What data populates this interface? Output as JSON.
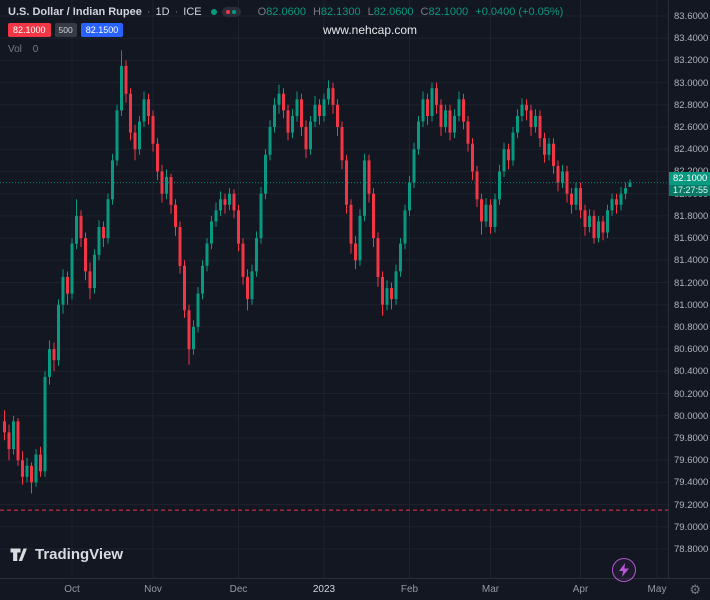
{
  "header": {
    "symbol_title": "U.S. Dollar / Indian Rupee",
    "sep": "·",
    "interval": "1D",
    "exchange": "ICE",
    "ohlc": {
      "o_label": "O",
      "o": "82.0600",
      "h_label": "H",
      "h": "82.1300",
      "l_label": "L",
      "l": "82.0600",
      "c_label": "C",
      "c": "82.1000",
      "change": "+0.0400 (+0.05%)"
    },
    "sell_price": "82.1000",
    "spread": "500",
    "buy_price": "82.1500",
    "vol_label": "Vol",
    "vol_value": "0"
  },
  "watermark": "www.nehcap.com",
  "footer": {
    "logo_text": "TradingView"
  },
  "icons": {
    "gear_glyph": "⚙"
  },
  "colors": {
    "bg": "#131722",
    "grid": "#1e222d",
    "up": "#089981",
    "down": "#f23645",
    "buy": "#2962ff",
    "sell": "#f23645",
    "text": "#d1d4dc",
    "text_dim": "#787b86",
    "axis_text": "#b2b5be",
    "boost": "#b357d2"
  },
  "price_axis": {
    "ticks": [
      "83.6000",
      "83.4000",
      "83.2000",
      "83.0000",
      "82.8000",
      "82.6000",
      "82.4000",
      "82.2000",
      "82.0000",
      "81.8000",
      "81.6000",
      "81.4000",
      "81.2000",
      "81.0000",
      "80.8000",
      "80.6000",
      "80.4000",
      "80.2000",
      "80.0000",
      "79.8000",
      "79.6000",
      "79.4000",
      "79.2000",
      "79.0000",
      "78.8000"
    ],
    "current_price": "82.1000",
    "countdown": "17:27:55"
  },
  "time_axis": {
    "labels": [
      {
        "label": "Oct",
        "index": 15
      },
      {
        "label": "Nov",
        "index": 33
      },
      {
        "label": "Dec",
        "index": 52
      },
      {
        "label": "2023",
        "index": 71,
        "emphasis": true
      },
      {
        "label": "Feb",
        "index": 90
      },
      {
        "label": "Mar",
        "index": 108
      },
      {
        "label": "Apr",
        "index": 128
      },
      {
        "label": "May",
        "index": 145
      }
    ]
  },
  "chart_data": {
    "type": "candlestick",
    "symbol": "U.S. Dollar / Indian Rupee",
    "interval": "1D",
    "exchange": "ICE",
    "y_min": 78.8,
    "y_max": 83.6,
    "tick_step": 0.2,
    "current_price": 82.1,
    "alert_line_price": 79.15,
    "candles": [
      [
        79.95,
        80.05,
        79.78,
        79.85
      ],
      [
        79.85,
        79.92,
        79.6,
        79.7
      ],
      [
        79.7,
        80.0,
        79.65,
        79.95
      ],
      [
        79.95,
        79.98,
        79.55,
        79.6
      ],
      [
        79.6,
        79.68,
        79.38,
        79.45
      ],
      [
        79.45,
        79.62,
        79.4,
        79.55
      ],
      [
        79.55,
        79.58,
        79.3,
        79.4
      ],
      [
        79.4,
        79.7,
        79.36,
        79.65
      ],
      [
        79.65,
        79.72,
        79.45,
        79.5
      ],
      [
        79.5,
        80.4,
        79.45,
        80.35
      ],
      [
        80.35,
        80.68,
        80.28,
        80.6
      ],
      [
        80.6,
        80.66,
        80.4,
        80.5
      ],
      [
        80.5,
        81.05,
        80.45,
        81.0
      ],
      [
        81.0,
        81.32,
        80.92,
        81.25
      ],
      [
        81.25,
        81.3,
        81.0,
        81.1
      ],
      [
        81.1,
        81.6,
        81.05,
        81.55
      ],
      [
        81.55,
        81.95,
        81.5,
        81.8
      ],
      [
        81.8,
        81.85,
        81.52,
        81.6
      ],
      [
        81.6,
        81.65,
        81.22,
        81.3
      ],
      [
        81.3,
        81.38,
        81.05,
        81.15
      ],
      [
        81.15,
        81.5,
        81.1,
        81.45
      ],
      [
        81.45,
        81.76,
        81.4,
        81.7
      ],
      [
        81.7,
        81.75,
        81.52,
        81.6
      ],
      [
        81.6,
        82.0,
        81.55,
        81.95
      ],
      [
        81.95,
        82.36,
        81.9,
        82.3
      ],
      [
        82.3,
        82.8,
        82.25,
        82.75
      ],
      [
        82.75,
        83.29,
        82.7,
        83.15
      ],
      [
        83.15,
        83.2,
        82.82,
        82.9
      ],
      [
        82.9,
        82.95,
        82.48,
        82.55
      ],
      [
        82.55,
        82.62,
        82.3,
        82.4
      ],
      [
        82.4,
        82.7,
        82.35,
        82.65
      ],
      [
        82.65,
        82.92,
        82.6,
        82.85
      ],
      [
        82.85,
        82.9,
        82.62,
        82.7
      ],
      [
        82.7,
        82.75,
        82.38,
        82.45
      ],
      [
        82.45,
        82.5,
        82.12,
        82.2
      ],
      [
        82.2,
        82.26,
        81.92,
        82.0
      ],
      [
        82.0,
        82.22,
        81.95,
        82.15
      ],
      [
        82.15,
        82.18,
        81.82,
        81.9
      ],
      [
        81.9,
        81.95,
        81.62,
        81.7
      ],
      [
        81.7,
        81.75,
        81.28,
        81.35
      ],
      [
        81.35,
        81.4,
        80.88,
        80.95
      ],
      [
        80.95,
        81.0,
        80.46,
        80.6
      ],
      [
        80.6,
        80.86,
        80.55,
        80.8
      ],
      [
        80.8,
        81.16,
        80.75,
        81.1
      ],
      [
        81.1,
        81.4,
        81.05,
        81.35
      ],
      [
        81.35,
        81.6,
        81.3,
        81.55
      ],
      [
        81.55,
        81.8,
        81.5,
        81.75
      ],
      [
        81.75,
        81.92,
        81.7,
        81.85
      ],
      [
        81.85,
        82.02,
        81.8,
        81.95
      ],
      [
        81.95,
        82.0,
        81.82,
        81.9
      ],
      [
        81.9,
        82.05,
        81.85,
        82.0
      ],
      [
        82.0,
        82.04,
        81.78,
        81.85
      ],
      [
        81.85,
        81.9,
        81.48,
        81.55
      ],
      [
        81.55,
        81.6,
        81.18,
        81.25
      ],
      [
        81.25,
        81.32,
        80.95,
        81.05
      ],
      [
        81.05,
        81.36,
        81.0,
        81.3
      ],
      [
        81.3,
        81.66,
        81.25,
        81.6
      ],
      [
        81.6,
        82.06,
        81.55,
        82.0
      ],
      [
        82.0,
        82.4,
        81.95,
        82.35
      ],
      [
        82.35,
        82.66,
        82.3,
        82.6
      ],
      [
        82.6,
        82.86,
        82.55,
        82.8
      ],
      [
        82.8,
        82.98,
        82.72,
        82.9
      ],
      [
        82.9,
        82.95,
        82.68,
        82.75
      ],
      [
        82.75,
        82.8,
        82.48,
        82.55
      ],
      [
        82.55,
        82.76,
        82.5,
        82.7
      ],
      [
        82.7,
        82.92,
        82.65,
        82.85
      ],
      [
        82.85,
        82.9,
        82.52,
        82.6
      ],
      [
        82.6,
        82.66,
        82.32,
        82.4
      ],
      [
        82.4,
        82.7,
        82.35,
        82.65
      ],
      [
        82.65,
        82.88,
        82.6,
        82.8
      ],
      [
        82.8,
        82.85,
        82.62,
        82.7
      ],
      [
        82.7,
        82.9,
        82.65,
        82.85
      ],
      [
        82.85,
        83.02,
        82.8,
        82.95
      ],
      [
        82.95,
        83.0,
        82.72,
        82.8
      ],
      [
        82.8,
        82.85,
        82.52,
        82.6
      ],
      [
        82.6,
        82.65,
        82.22,
        82.3
      ],
      [
        82.3,
        82.35,
        81.82,
        81.9
      ],
      [
        81.9,
        81.95,
        81.46,
        81.55
      ],
      [
        81.55,
        81.62,
        81.32,
        81.4
      ],
      [
        81.4,
        81.86,
        81.35,
        81.8
      ],
      [
        81.8,
        82.36,
        81.75,
        82.3
      ],
      [
        82.3,
        82.35,
        81.92,
        82.0
      ],
      [
        82.0,
        82.05,
        81.52,
        81.6
      ],
      [
        81.6,
        81.65,
        81.16,
        81.25
      ],
      [
        81.25,
        81.3,
        80.9,
        81.0
      ],
      [
        81.0,
        81.22,
        80.95,
        81.15
      ],
      [
        81.15,
        81.2,
        80.96,
        81.05
      ],
      [
        81.05,
        81.36,
        81.0,
        81.3
      ],
      [
        81.3,
        81.6,
        81.25,
        81.55
      ],
      [
        81.55,
        81.9,
        81.5,
        81.85
      ],
      [
        81.85,
        82.16,
        81.8,
        82.1
      ],
      [
        82.1,
        82.46,
        82.05,
        82.4
      ],
      [
        82.4,
        82.7,
        82.35,
        82.65
      ],
      [
        82.65,
        82.92,
        82.6,
        82.85
      ],
      [
        82.85,
        82.9,
        82.62,
        82.7
      ],
      [
        82.7,
        83.0,
        82.65,
        82.95
      ],
      [
        82.95,
        83.0,
        82.72,
        82.8
      ],
      [
        82.8,
        82.85,
        82.52,
        82.6
      ],
      [
        82.6,
        82.8,
        82.55,
        82.75
      ],
      [
        82.75,
        82.8,
        82.48,
        82.55
      ],
      [
        82.55,
        82.76,
        82.5,
        82.7
      ],
      [
        82.7,
        82.92,
        82.65,
        82.85
      ],
      [
        82.85,
        82.9,
        82.58,
        82.65
      ],
      [
        82.65,
        82.7,
        82.38,
        82.45
      ],
      [
        82.45,
        82.5,
        82.12,
        82.2
      ],
      [
        82.2,
        82.25,
        81.88,
        81.95
      ],
      [
        81.95,
        82.0,
        81.63,
        81.75
      ],
      [
        81.75,
        81.96,
        81.7,
        81.9
      ],
      [
        81.9,
        81.95,
        81.64,
        81.7
      ],
      [
        81.7,
        82.0,
        81.65,
        81.95
      ],
      [
        81.95,
        82.26,
        81.9,
        82.2
      ],
      [
        82.2,
        82.46,
        82.15,
        82.4
      ],
      [
        82.4,
        82.45,
        82.22,
        82.3
      ],
      [
        82.3,
        82.6,
        82.25,
        82.55
      ],
      [
        82.55,
        82.76,
        82.5,
        82.7
      ],
      [
        82.7,
        82.86,
        82.65,
        82.8
      ],
      [
        82.8,
        82.85,
        82.66,
        82.75
      ],
      [
        82.75,
        82.8,
        82.52,
        82.6
      ],
      [
        82.6,
        82.76,
        82.55,
        82.7
      ],
      [
        82.7,
        82.75,
        82.42,
        82.5
      ],
      [
        82.5,
        82.55,
        82.28,
        82.35
      ],
      [
        82.35,
        82.5,
        82.3,
        82.45
      ],
      [
        82.45,
        82.5,
        82.18,
        82.25
      ],
      [
        82.25,
        82.3,
        82.02,
        82.1
      ],
      [
        82.1,
        82.26,
        82.05,
        82.2
      ],
      [
        82.2,
        82.25,
        81.92,
        82.0
      ],
      [
        82.0,
        82.05,
        81.82,
        81.9
      ],
      [
        81.9,
        82.1,
        81.85,
        82.05
      ],
      [
        82.05,
        82.1,
        81.78,
        81.85
      ],
      [
        81.85,
        81.9,
        81.62,
        81.7
      ],
      [
        81.7,
        81.86,
        81.65,
        81.8
      ],
      [
        81.8,
        81.85,
        81.55,
        81.6
      ],
      [
        81.6,
        81.8,
        81.56,
        81.75
      ],
      [
        81.75,
        81.8,
        81.58,
        81.65
      ],
      [
        81.65,
        81.9,
        81.6,
        81.85
      ],
      [
        81.85,
        82.0,
        81.8,
        81.95
      ],
      [
        81.95,
        82.0,
        81.82,
        81.9
      ],
      [
        81.9,
        82.06,
        81.85,
        82.0
      ],
      [
        82.0,
        82.1,
        81.95,
        82.05
      ],
      [
        82.06,
        82.13,
        82.06,
        82.1
      ]
    ]
  }
}
